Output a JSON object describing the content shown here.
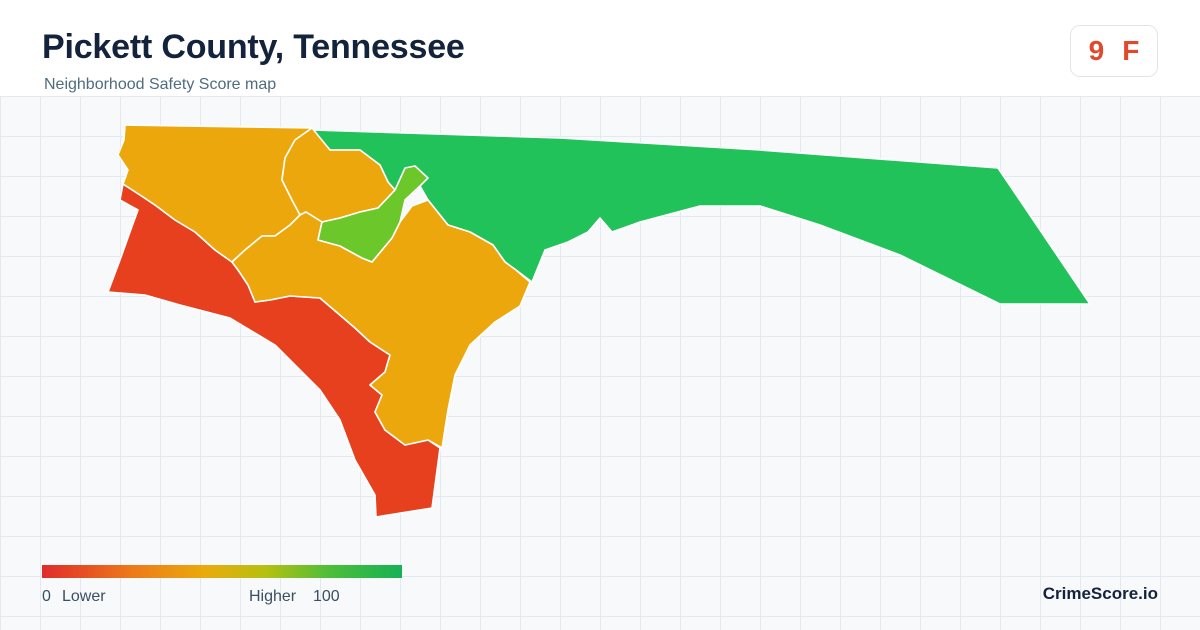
{
  "header": {
    "title": "Pickett County, Tennessee",
    "subtitle": "Neighborhood Safety Score map"
  },
  "score": {
    "value": "9",
    "grade": "F",
    "color": "#e04a2a"
  },
  "map": {
    "regions": [
      {
        "id": "northwest",
        "color": "#eca70c"
      },
      {
        "id": "west-southwest",
        "color": "#e6401f"
      },
      {
        "id": "central-north",
        "color": "#eca70c"
      },
      {
        "id": "central-south",
        "color": "#eca70c"
      },
      {
        "id": "central-highlight",
        "color": "#6cc82a"
      },
      {
        "id": "east",
        "color": "#22c25a"
      }
    ]
  },
  "legend": {
    "min_value": "0",
    "min_label": "Lower",
    "max_label": "Higher",
    "max_value": "100"
  },
  "brand": "CrimeScore.io"
}
